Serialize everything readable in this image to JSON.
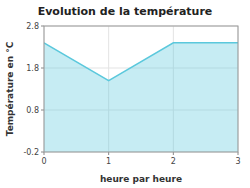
{
  "chart_data": {
    "type": "area",
    "title": "Evolution de la température",
    "xlabel": "heure par heure",
    "ylabel": "Température en °C",
    "x": [
      0,
      1,
      2,
      3
    ],
    "values": [
      2.4,
      1.5,
      2.4,
      2.4
    ],
    "color": "#5bc8dc",
    "xlim": [
      0,
      3
    ],
    "ylim": [
      -0.2,
      2.8
    ],
    "xticks": [
      0,
      1,
      2,
      3
    ],
    "yticks": [
      -0.2,
      0.8,
      1.8,
      2.8
    ],
    "grid": true
  }
}
